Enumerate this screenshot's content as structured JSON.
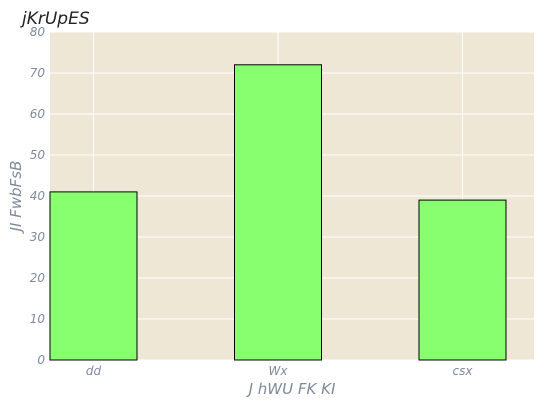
{
  "chart_data": {
    "type": "bar",
    "title": "jKrUpES",
    "xlabel": "J hWU FK  KI",
    "ylabel": "JI FwbFsB",
    "categories": [
      "dd",
      "Wx",
      "csx"
    ],
    "values": [
      41,
      72,
      39
    ],
    "ylim": [
      0,
      80
    ],
    "yticks": [
      0,
      10,
      20,
      30,
      40,
      50,
      60,
      70,
      80
    ],
    "grid": true,
    "legend": "none",
    "colors": {
      "bar_fill": "#88ff6f",
      "bar_edge": "#000000",
      "plot_background": "#eee7d6",
      "grid": "#ffffff",
      "text": "#7f8a99",
      "title": "#222222"
    }
  }
}
